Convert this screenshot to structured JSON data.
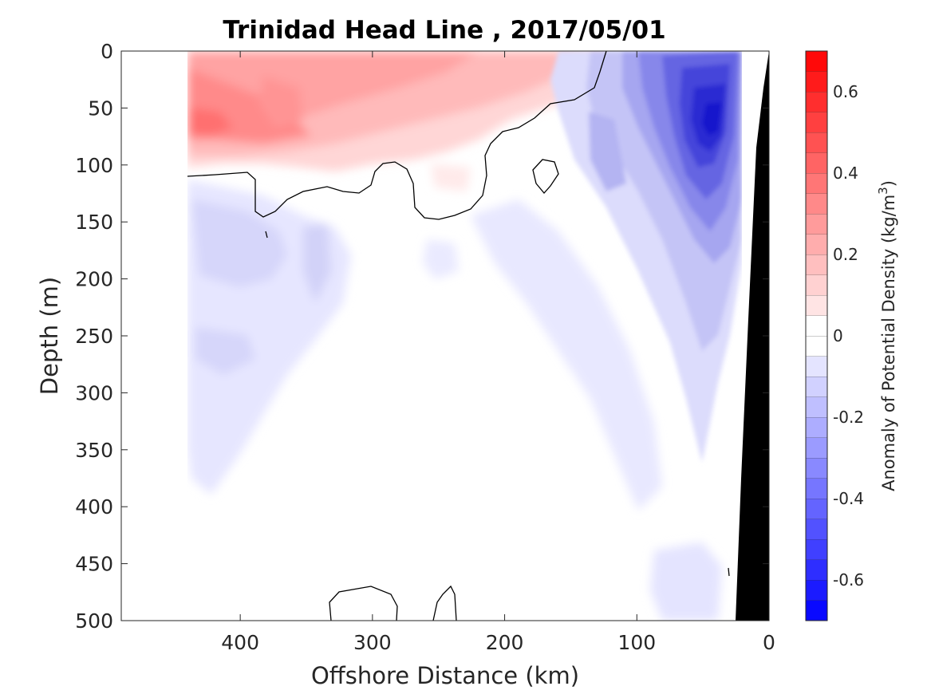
{
  "chart_data": {
    "type": "heatmap",
    "title": "Trinidad Head Line , 2017/05/01",
    "xlabel": "Offshore Distance (km)",
    "ylabel": "Depth (m)",
    "xlim": [
      490,
      0
    ],
    "ylim": [
      0,
      500
    ],
    "x_reversed": true,
    "y_reversed": true,
    "xticks": [
      "400",
      "300",
      "200",
      "100",
      "0"
    ],
    "yticks": [
      "0",
      "50",
      "100",
      "150",
      "200",
      "250",
      "300",
      "350",
      "400",
      "450",
      "500"
    ],
    "colorbar": {
      "label": "Anomaly of Potential Density (kg/m",
      "label_superscript": "3",
      "label_close": ")",
      "range": [
        -0.7,
        0.7
      ],
      "level_step": 0.05,
      "ticks": [
        "0.6",
        "0.4",
        "0.2",
        "0",
        "-0.2",
        "-0.4",
        "-0.6"
      ],
      "colors": {
        "positive": "#ff0000",
        "zero": "#ffffff",
        "negative": "#0000ff"
      }
    },
    "data_extent_km": [
      20,
      443
    ],
    "features": [
      {
        "name": "surface-dense-anomaly",
        "sign": "positive",
        "x_range_km": [
          443,
          120
        ],
        "depth_range_m": [
          0,
          130
        ],
        "peak_value": 0.45,
        "peak_at": {
          "x_km": 435,
          "depth_m": 60
        }
      },
      {
        "name": "coastal-light-core",
        "sign": "negative",
        "x_range_km": [
          120,
          20
        ],
        "depth_range_m": [
          0,
          360
        ],
        "peak_value": -0.65,
        "peak_at": {
          "x_km": 35,
          "depth_m": 60
        }
      },
      {
        "name": "subsurface-light-anomaly",
        "sign": "negative",
        "x_range_km": [
          443,
          250
        ],
        "depth_range_m": [
          110,
          390
        ],
        "peak_value": -0.15
      }
    ],
    "zero_contour": "black line",
    "bathymetry_fill": "#000000"
  }
}
